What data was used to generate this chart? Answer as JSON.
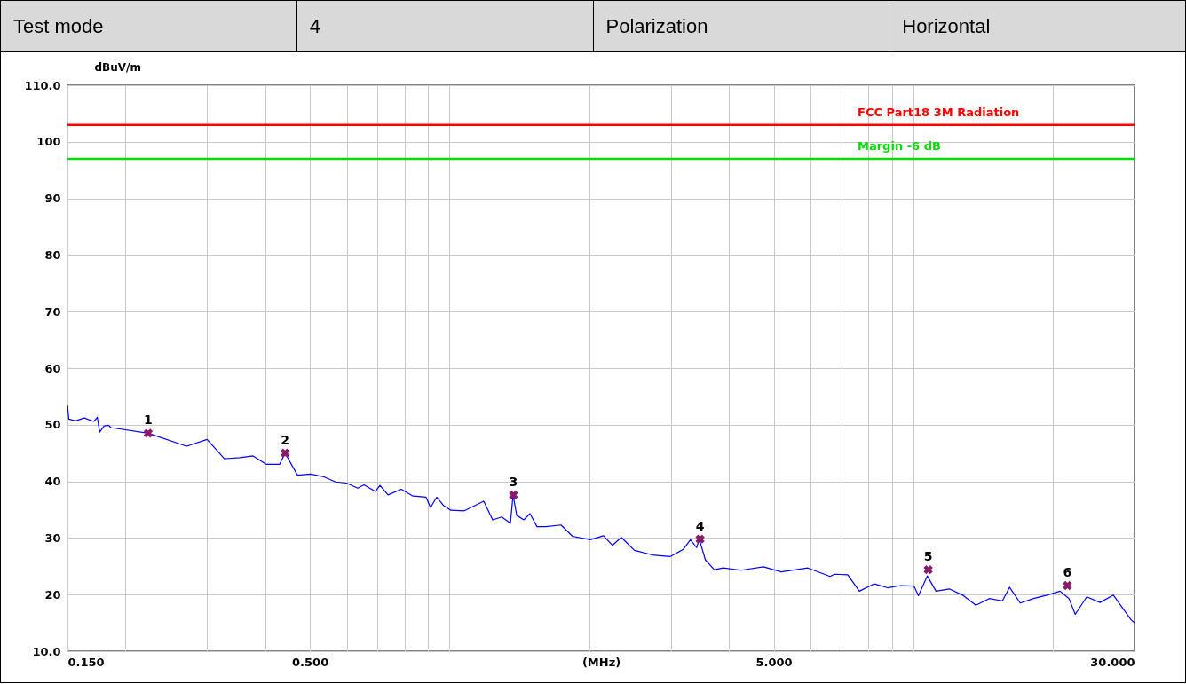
{
  "chart_data": {
    "type": "line",
    "xlabel": "(MHz)",
    "ylabel": "dBuV/m",
    "annotations": [
      "Test mode",
      "4",
      "Polarization",
      "Horizontal",
      {
        "text": "1",
        "x": 0.224,
        "y": 48.5
      },
      {
        "text": "2",
        "x": 0.442,
        "y": 45.0
      },
      {
        "text": "3",
        "x": 1.374,
        "y": 37.6
      },
      {
        "text": "4",
        "x": 3.47,
        "y": 29.8
      },
      {
        "text": "5",
        "x": 10.77,
        "y": 24.4
      },
      {
        "text": "6",
        "x": 21.5,
        "y": 21.6
      }
    ],
    "log": "x",
    "grid": true,
    "xlim": [
      0.15,
      30
    ],
    "xticks": [
      {
        "value": 0.15,
        "label": "0.150"
      },
      {
        "value": 0.2,
        "label": null
      },
      {
        "value": 0.3,
        "label": null
      },
      {
        "value": 0.4,
        "label": null
      },
      {
        "value": 0.5,
        "label": "0.500"
      },
      {
        "value": 0.6,
        "label": null
      },
      {
        "value": 0.7,
        "label": null
      },
      {
        "value": 0.8,
        "label": null
      },
      {
        "value": 0.9,
        "label": null
      },
      {
        "value": 1,
        "label": null
      },
      {
        "value": 2,
        "label": null
      },
      {
        "value": 3,
        "label": null
      },
      {
        "value": 4,
        "label": null
      },
      {
        "value": 5,
        "label": "5.000"
      },
      {
        "value": 6,
        "label": null
      },
      {
        "value": 7,
        "label": null
      },
      {
        "value": 8,
        "label": null
      },
      {
        "value": 9,
        "label": null
      },
      {
        "value": 10,
        "label": null
      },
      {
        "value": 20,
        "label": null
      },
      {
        "value": 30,
        "label": "30.000"
      }
    ],
    "ylim": [
      10,
      110
    ],
    "yticks": [
      {
        "value": 10,
        "label": "10.0"
      },
      20,
      30,
      40,
      50,
      60,
      70,
      80,
      90,
      100,
      {
        "value": 110,
        "label": "110.0"
      }
    ],
    "ref_lines": [
      {
        "axis": "y",
        "value": 103,
        "label": "FCC Part18 3M Radiation",
        "color": "#ff0000"
      },
      {
        "axis": "y",
        "value": 97,
        "label": "Margin -6 dB",
        "color": "#00dd00"
      }
    ],
    "series": [
      {
        "color": "#0000ff",
        "x": [
          0.15,
          0.151,
          0.156,
          0.163,
          0.171,
          0.174,
          0.176,
          0.18,
          0.184,
          0.186,
          0.224,
          0.271,
          0.3,
          0.327,
          0.353,
          0.377,
          0.403,
          0.43,
          0.442,
          0.47,
          0.502,
          0.536,
          0.568,
          0.599,
          0.634,
          0.654,
          0.692,
          0.708,
          0.737,
          0.787,
          0.834,
          0.89,
          0.91,
          0.938,
          0.972,
          1.007,
          1.076,
          1.185,
          1.239,
          1.296,
          1.353,
          1.371,
          1.396,
          1.446,
          1.491,
          1.544,
          1.614,
          1.739,
          1.842,
          2.012,
          2.148,
          2.245,
          2.346,
          2.505,
          2.737,
          2.99,
          3.193,
          3.308,
          3.411,
          3.456,
          3.563,
          3.724,
          3.892,
          4.253,
          4.752,
          5.194,
          5.925,
          6.617,
          6.765,
          7.224,
          7.652,
          8.245,
          8.805,
          9.401,
          10.04,
          10.26,
          10.72,
          11.2,
          11.96,
          12.78,
          13.65,
          14.58,
          15.57,
          16.13,
          17.01,
          18.17,
          19.41,
          20.73,
          21.67,
          22.35,
          23.67,
          25.28,
          27.01,
          28.23,
          29.52,
          30.0
        ],
        "values": [
          53.5,
          51.0,
          50.7,
          51.2,
          50.6,
          51.3,
          48.7,
          49.8,
          49.9,
          49.5,
          48.5,
          46.2,
          47.4,
          44.0,
          44.2,
          44.5,
          43.0,
          43.0,
          45.0,
          41.1,
          41.3,
          40.8,
          39.9,
          39.7,
          38.8,
          39.4,
          38.2,
          39.3,
          37.6,
          38.6,
          37.4,
          37.2,
          35.4,
          37.2,
          35.7,
          34.9,
          34.8,
          36.5,
          33.2,
          33.7,
          32.6,
          37.6,
          34.0,
          33.2,
          34.3,
          32.0,
          32.0,
          32.3,
          30.3,
          29.7,
          30.4,
          28.7,
          30.1,
          27.8,
          27.0,
          26.7,
          28.0,
          29.7,
          28.3,
          29.8,
          26.1,
          24.4,
          24.7,
          24.3,
          24.9,
          24.0,
          24.7,
          23.2,
          23.6,
          23.5,
          20.6,
          21.9,
          21.2,
          21.6,
          21.5,
          19.8,
          23.3,
          20.6,
          21.0,
          19.9,
          18.1,
          19.3,
          18.9,
          21.3,
          18.5,
          19.3,
          19.9,
          20.6,
          19.3,
          16.5,
          19.6,
          18.6,
          19.9,
          17.7,
          15.5,
          15.0
        ]
      },
      {
        "type": "scatter",
        "color": "#8b1a6b",
        "marker": "cross",
        "x": [
          0.224,
          0.442,
          1.374,
          3.47,
          10.77,
          21.5
        ],
        "values": [
          48.5,
          45.0,
          37.6,
          29.8,
          24.4,
          21.6
        ]
      }
    ]
  }
}
